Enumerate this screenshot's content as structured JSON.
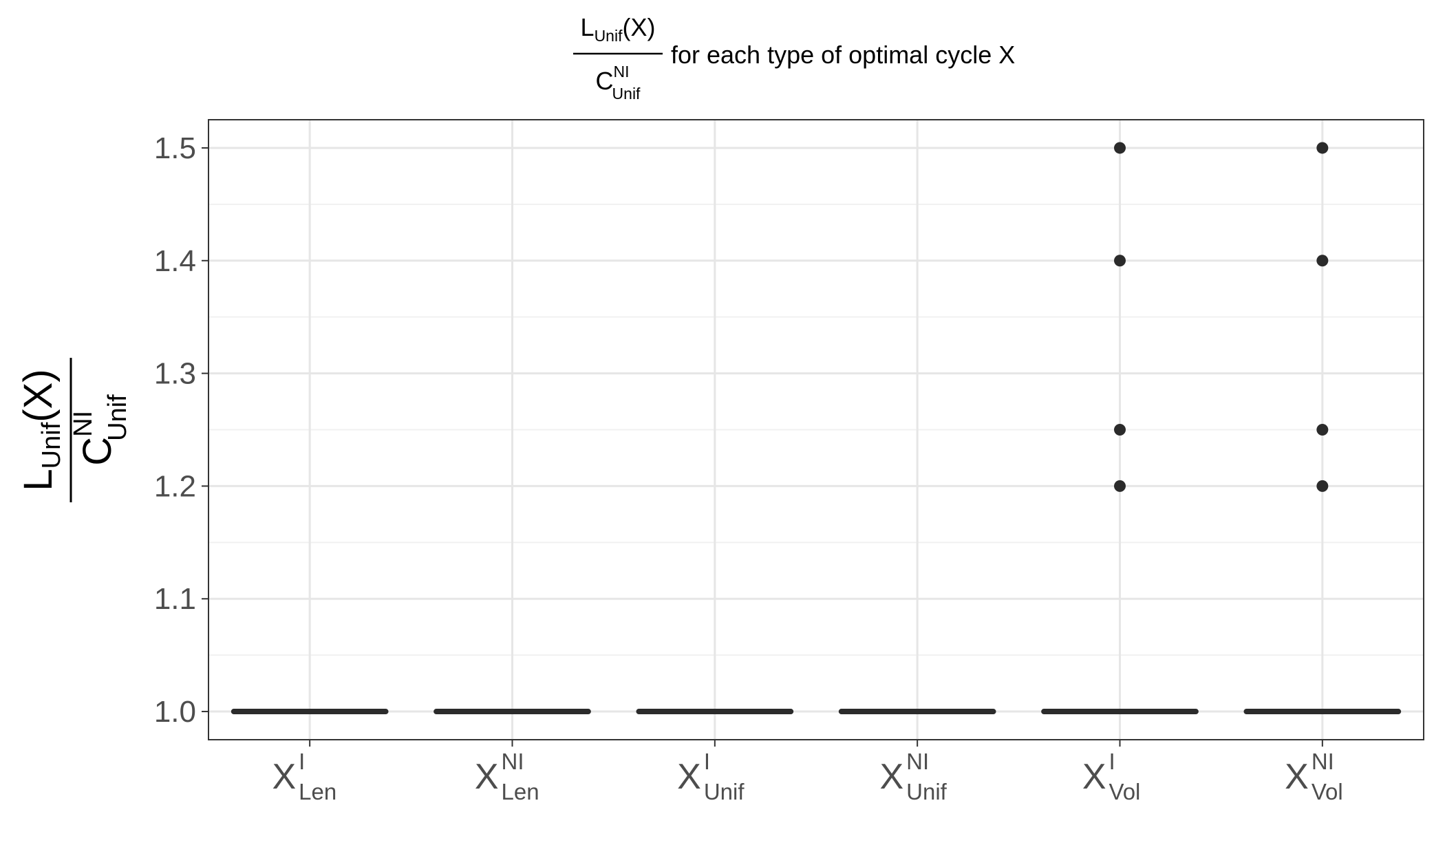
{
  "chart_data": {
    "type": "boxplot",
    "title": {
      "fraction_numerator": {
        "base": "L",
        "sub": "Unif",
        "suffix": "(X)"
      },
      "fraction_denominator": {
        "base": "C",
        "sup": "NI",
        "sub": "Unif"
      },
      "text": "for each type of optimal cycle X"
    },
    "ylabel": {
      "fraction_numerator": {
        "base": "L",
        "sub": "Unif",
        "suffix": "(X)"
      },
      "fraction_denominator": {
        "base": "C",
        "sup": "NI",
        "sub": "Unif"
      }
    },
    "xlabel": "",
    "ylim": [
      0.975,
      1.525
    ],
    "y_ticks": [
      1.0,
      1.1,
      1.2,
      1.3,
      1.4,
      1.5
    ],
    "y_tick_labels": [
      "1.0",
      "1.1",
      "1.2",
      "1.3",
      "1.4",
      "1.5"
    ],
    "y_minor_ticks": [
      1.05,
      1.15,
      1.25,
      1.35,
      1.45
    ],
    "grid": true,
    "categories": [
      {
        "base": "X",
        "sup": "I",
        "sub": "Len"
      },
      {
        "base": "X",
        "sup": "NI",
        "sub": "Len"
      },
      {
        "base": "X",
        "sup": "I",
        "sub": "Unif"
      },
      {
        "base": "X",
        "sup": "NI",
        "sub": "Unif"
      },
      {
        "base": "X",
        "sup": "I",
        "sub": "Vol"
      },
      {
        "base": "X",
        "sup": "NI",
        "sub": "Vol"
      }
    ],
    "boxes": [
      {
        "median": 1.0,
        "q1": 1.0,
        "q3": 1.0,
        "whisker_low": 1.0,
        "whisker_high": 1.0,
        "outliers": []
      },
      {
        "median": 1.0,
        "q1": 1.0,
        "q3": 1.0,
        "whisker_low": 1.0,
        "whisker_high": 1.0,
        "outliers": []
      },
      {
        "median": 1.0,
        "q1": 1.0,
        "q3": 1.0,
        "whisker_low": 1.0,
        "whisker_high": 1.0,
        "outliers": []
      },
      {
        "median": 1.0,
        "q1": 1.0,
        "q3": 1.0,
        "whisker_low": 1.0,
        "whisker_high": 1.0,
        "outliers": []
      },
      {
        "median": 1.0,
        "q1": 1.0,
        "q3": 1.0,
        "whisker_low": 1.0,
        "whisker_high": 1.0,
        "outliers": [
          1.2,
          1.25,
          1.4,
          1.5
        ]
      },
      {
        "median": 1.0,
        "q1": 1.0,
        "q3": 1.0,
        "whisker_low": 1.0,
        "whisker_high": 1.0,
        "outliers": [
          1.2,
          1.25,
          1.4,
          1.5
        ]
      }
    ],
    "colors": {
      "box_line": "#2b2b2b",
      "outlier": "#2b2b2b",
      "grid_major": "#e6e6e6",
      "grid_minor": "#f1f1f1",
      "panel_border": "#333333",
      "tick_text": "#4d4d4d",
      "title_text": "#000000"
    }
  }
}
